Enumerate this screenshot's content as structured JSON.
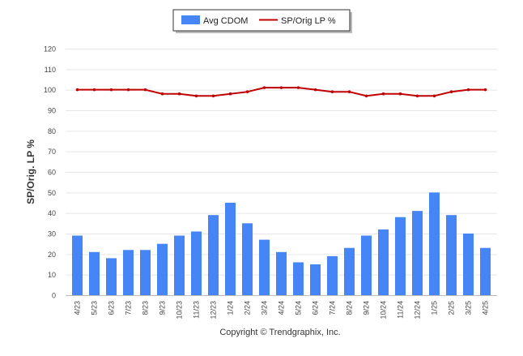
{
  "legend": {
    "bar_label": "Avg CDOM",
    "line_label": "SP/Orig LP %"
  },
  "footer": {
    "copyright": "Copyright © Trendgraphix, Inc."
  },
  "colors": {
    "bar": "#4585F5",
    "line": "#C00000",
    "grid": "#E6E6E6",
    "axis_text": "#444444"
  },
  "chart_data": {
    "type": "bar",
    "title": "",
    "xlabel": "",
    "ylabel": "SP/Orig. LP %",
    "ylim": [
      0,
      120
    ],
    "yticks": [
      0,
      10,
      20,
      30,
      40,
      50,
      60,
      70,
      80,
      90,
      100,
      110,
      120
    ],
    "grid": true,
    "legend_position": "top-center",
    "categories": [
      "4/23",
      "5/23",
      "6/23",
      "7/23",
      "8/23",
      "9/23",
      "10/23",
      "11/23",
      "12/23",
      "1/24",
      "2/24",
      "3/24",
      "4/24",
      "5/24",
      "6/24",
      "7/24",
      "8/24",
      "9/24",
      "10/24",
      "11/24",
      "12/24",
      "1/25",
      "2/25",
      "3/25",
      "4/25"
    ],
    "series": [
      {
        "name": "Avg CDOM",
        "type": "bar",
        "values": [
          29,
          21,
          18,
          22,
          22,
          25,
          29,
          31,
          39,
          45,
          35,
          27,
          21,
          16,
          15,
          19,
          23,
          29,
          32,
          38,
          41,
          50,
          39,
          30,
          23
        ]
      },
      {
        "name": "SP/Orig LP %",
        "type": "line",
        "values": [
          100,
          100,
          100,
          100,
          100,
          98,
          98,
          97,
          97,
          98,
          99,
          101,
          101,
          101,
          100,
          99,
          99,
          97,
          98,
          98,
          97,
          97,
          99,
          100,
          100
        ]
      }
    ]
  }
}
